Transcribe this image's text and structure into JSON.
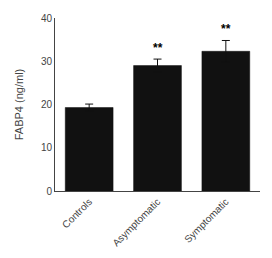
{
  "chart_data": {
    "type": "bar",
    "categories": [
      "Controls",
      "Asymptomatic",
      "Symptomatic"
    ],
    "values": [
      19.3,
      29.0,
      32.3
    ],
    "errors": [
      0.8,
      1.5,
      2.5
    ],
    "color": "#111111",
    "ylabel": "FABP4 (ng/ml)",
    "ylim": [
      0,
      40
    ],
    "yticks": [
      0,
      10,
      20,
      30,
      40
    ],
    "grid": false,
    "annotations": [
      {
        "x": "Asymptomatic",
        "text": "**"
      },
      {
        "x": "Symptomatic",
        "text": "**"
      }
    ]
  }
}
